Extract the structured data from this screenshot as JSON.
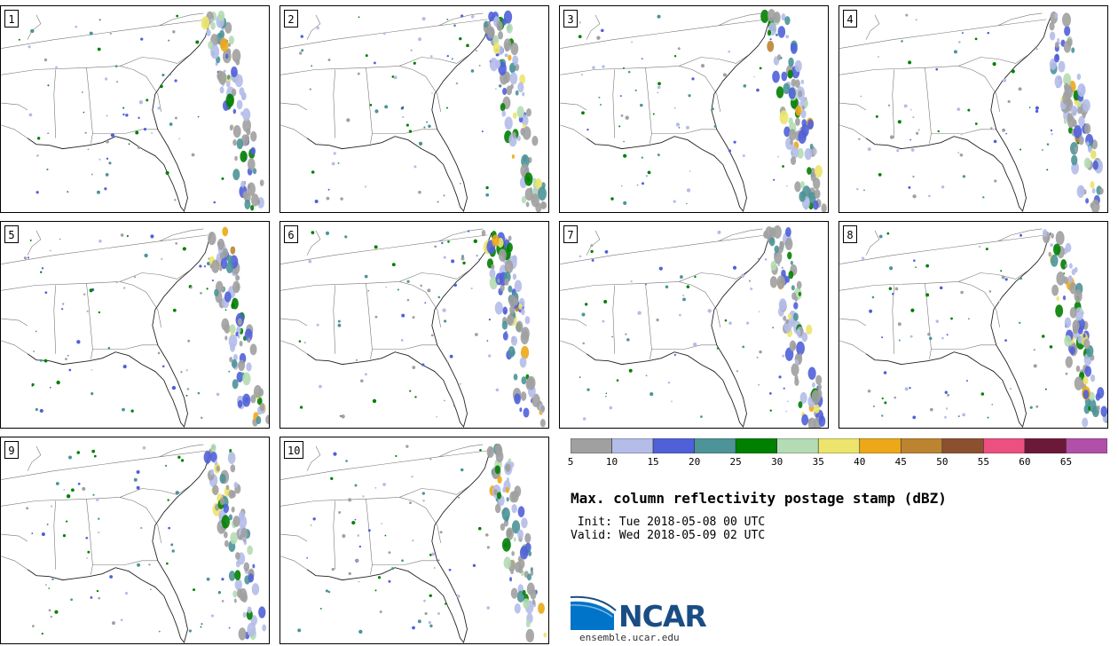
{
  "panels": [
    {
      "label": "1",
      "seed": 11
    },
    {
      "label": "2",
      "seed": 23
    },
    {
      "label": "3",
      "seed": 37
    },
    {
      "label": "4",
      "seed": 41
    },
    {
      "label": "5",
      "seed": 53
    },
    {
      "label": "6",
      "seed": 67
    },
    {
      "label": "7",
      "seed": 79
    },
    {
      "label": "8",
      "seed": 83
    },
    {
      "label": "9",
      "seed": 97
    },
    {
      "label": "10",
      "seed": 101
    }
  ],
  "colorbar": {
    "levels": [
      5,
      10,
      15,
      20,
      25,
      30,
      35,
      40,
      45,
      50,
      55,
      60,
      65
    ],
    "colors": [
      "#a0a0a0",
      "#b4bde8",
      "#5060d8",
      "#4c9498",
      "#008000",
      "#b4dcb4",
      "#ece46c",
      "#eca818",
      "#bc8430",
      "#8c5030",
      "#ec5080",
      "#6c1838",
      "#b050a8"
    ]
  },
  "title": "Max. column reflectivity postage stamp (dBZ)",
  "init_text": " Init: Tue 2018-05-08 00 UTC",
  "valid_text": "Valid: Wed 2018-05-09 02 UTC",
  "logo": {
    "name": "NCAR",
    "url": "ensemble.ucar.edu",
    "color": "#1a4d84",
    "accent": "#0074c8"
  }
}
